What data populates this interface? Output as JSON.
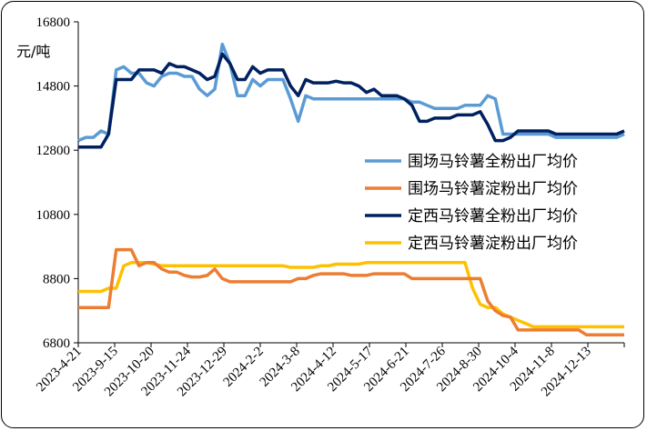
{
  "chart_data": {
    "type": "line",
    "ylabel": "元/吨",
    "ylim": [
      6800,
      16800
    ],
    "yticks": [
      6800,
      8800,
      10800,
      12800,
      14800,
      16800
    ],
    "x_tick_labels": [
      "2023-4-21",
      "2023-9-15",
      "2023-10-20",
      "2023-11-24",
      "2023-12-29",
      "2024-2-2",
      "2024-3-8",
      "2024-4-12",
      "2024-5-17",
      "2024-6-21",
      "2024-7-26",
      "2024-8-30",
      "2024-10-4",
      "2024-11-8",
      "2024-12-13"
    ],
    "legend_position": "center-right",
    "grid": false,
    "series": [
      {
        "name": "围场马铃薯全粉出厂均价",
        "color": "#5B9BD5",
        "values": [
          13100,
          13200,
          13200,
          13400,
          13300,
          15300,
          15400,
          15200,
          15200,
          14900,
          14800,
          15100,
          15200,
          15200,
          15100,
          15100,
          14700,
          14500,
          14700,
          16100,
          15500,
          14500,
          14500,
          15000,
          14800,
          15000,
          15000,
          15000,
          14400,
          13700,
          14500,
          14400,
          14400,
          14400,
          14400,
          14400,
          14400,
          14400,
          14400,
          14400,
          14400,
          14400,
          14400,
          14400,
          14300,
          14300,
          14200,
          14100,
          14100,
          14100,
          14100,
          14200,
          14200,
          14200,
          14500,
          14400,
          13300,
          13300,
          13300,
          13300,
          13300,
          13300,
          13300,
          13200,
          13200,
          13200,
          13200,
          13200,
          13200,
          13200,
          13200,
          13200,
          13300
        ]
      },
      {
        "name": "围场马铃薯淀粉出厂均价",
        "color": "#ED7D31",
        "values": [
          7900,
          7900,
          7900,
          7900,
          7900,
          9700,
          9700,
          9700,
          9200,
          9300,
          9300,
          9100,
          9000,
          9000,
          8900,
          8850,
          8850,
          8900,
          9100,
          8800,
          8700,
          8700,
          8700,
          8700,
          8700,
          8700,
          8700,
          8700,
          8700,
          8800,
          8800,
          8900,
          8950,
          8950,
          8950,
          8950,
          8900,
          8900,
          8900,
          8950,
          8950,
          8950,
          8950,
          8950,
          8800,
          8800,
          8800,
          8800,
          8800,
          8800,
          8800,
          8800,
          8800,
          8800,
          8100,
          7800,
          7650,
          7600,
          7200,
          7200,
          7200,
          7200,
          7200,
          7200,
          7200,
          7200,
          7200,
          7050,
          7050,
          7050,
          7050,
          7050,
          7050
        ]
      },
      {
        "name": "定西马铃薯全粉出厂均价",
        "color": "#002060",
        "values": [
          12900,
          12900,
          12900,
          12900,
          13300,
          15000,
          15000,
          15000,
          15300,
          15300,
          15300,
          15200,
          15500,
          15400,
          15400,
          15300,
          15200,
          15000,
          15100,
          15800,
          15500,
          15000,
          15000,
          15400,
          15200,
          15300,
          15300,
          15300,
          14800,
          14500,
          15000,
          14900,
          14900,
          14900,
          14950,
          14900,
          14900,
          14800,
          14600,
          14700,
          14500,
          14500,
          14500,
          14400,
          14200,
          13700,
          13700,
          13800,
          13800,
          13800,
          13900,
          13900,
          13900,
          14000,
          13600,
          13100,
          13100,
          13200,
          13400,
          13400,
          13400,
          13400,
          13400,
          13300,
          13300,
          13300,
          13300,
          13300,
          13300,
          13300,
          13300,
          13300,
          13400
        ]
      },
      {
        "name": "定西马铃薯淀粉出厂均价",
        "color": "#FFC000",
        "values": [
          8400,
          8400,
          8400,
          8400,
          8500,
          8500,
          9200,
          9300,
          9300,
          9300,
          9250,
          9200,
          9200,
          9200,
          9200,
          9200,
          9200,
          9200,
          9200,
          9200,
          9200,
          9200,
          9200,
          9200,
          9200,
          9200,
          9200,
          9200,
          9150,
          9150,
          9150,
          9150,
          9200,
          9200,
          9250,
          9250,
          9250,
          9250,
          9300,
          9300,
          9300,
          9300,
          9300,
          9300,
          9300,
          9300,
          9300,
          9300,
          9300,
          9300,
          9300,
          9300,
          8500,
          8000,
          7900,
          7900,
          7700,
          7600,
          7500,
          7400,
          7300,
          7300,
          7300,
          7300,
          7300,
          7300,
          7300,
          7300,
          7300,
          7300,
          7300,
          7300,
          7300
        ]
      }
    ]
  }
}
